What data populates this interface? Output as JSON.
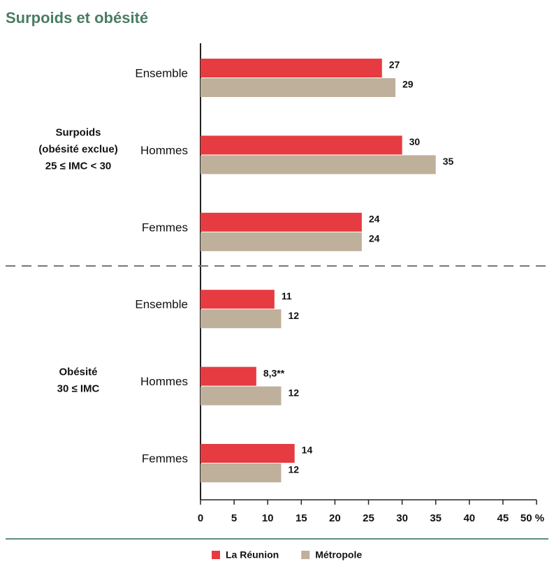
{
  "chart_data": {
    "type": "hbar_grouped",
    "title": "Surpoids et obésité",
    "groups": [
      {
        "lines": [
          "Surpoids",
          "(obésité exclue)",
          "25 ≤ IMC < 30"
        ]
      },
      {
        "lines": [
          "Obésité",
          "30 ≤ IMC"
        ]
      }
    ],
    "categories": [
      "Ensemble",
      "Hommes",
      "Femmes",
      "Ensemble",
      "Hommes",
      "Femmes"
    ],
    "series": [
      {
        "name": "La Réunion",
        "color": "#e63b40",
        "values": [
          27,
          30,
          24,
          11,
          8.3,
          14
        ],
        "value_labels": [
          "27",
          "30",
          "24",
          "11",
          "8,3**",
          "14"
        ]
      },
      {
        "name": "Métropole",
        "color": "#bfb09b",
        "values": [
          29,
          35,
          24,
          12,
          12,
          12
        ]
      }
    ],
    "xlim": [
      0,
      50
    ],
    "xticks": [
      0,
      5,
      10,
      15,
      20,
      25,
      30,
      35,
      40,
      45,
      {
        "value": 50,
        "label": "50 %"
      }
    ],
    "legend": "bottom"
  }
}
